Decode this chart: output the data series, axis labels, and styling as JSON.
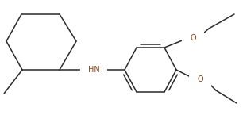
{
  "background_color": "#ffffff",
  "line_color": "#2a2a2a",
  "heteroatom_color": "#8B4513",
  "line_width": 1.1,
  "figsize": [
    3.06,
    1.45
  ],
  "dpi": 100,
  "HN_label": "HN",
  "O_label": "O"
}
